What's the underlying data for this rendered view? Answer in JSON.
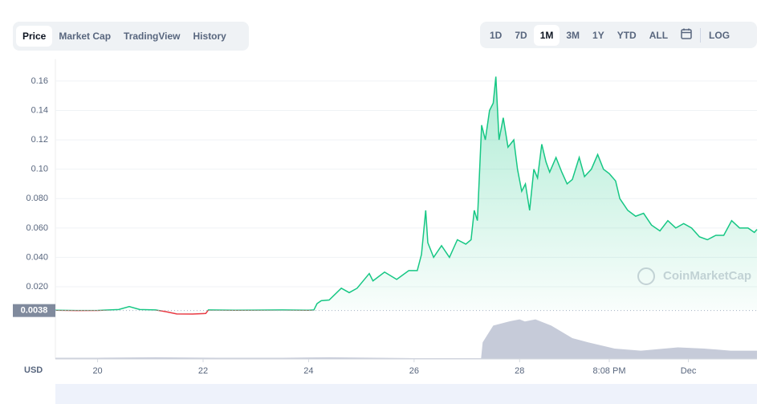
{
  "tabs": {
    "items": [
      "Price",
      "Market Cap",
      "TradingView",
      "History"
    ],
    "active": 0
  },
  "ranges": {
    "items": [
      "1D",
      "7D",
      "1M",
      "3M",
      "1Y",
      "YTD",
      "ALL"
    ],
    "active": 2,
    "log": "LOG"
  },
  "chart_data": {
    "type": "line",
    "currency": "USD",
    "watermark": "CoinMarketCap",
    "baseline": 0.0038,
    "xlim": [
      19.2,
      32.5
    ],
    "xticks": [
      20,
      22,
      24,
      26,
      28,
      {
        "value": 29.7,
        "label": "8:08 PM"
      },
      {
        "value": 31.2,
        "label": "Dec"
      }
    ],
    "ylim": [
      0,
      0.175
    ],
    "yticks": [
      {
        "value": 0.02,
        "label": "0.020"
      },
      {
        "value": 0.04,
        "label": "0.040"
      },
      {
        "value": 0.06,
        "label": "0.060"
      },
      {
        "value": 0.08,
        "label": "0.080"
      },
      {
        "value": 0.1,
        "label": "0.10"
      },
      0.12,
      0.14,
      0.16
    ],
    "grid": true,
    "series": [
      {
        "name": "Price",
        "color": "#16c784",
        "down_color": "#ea3943",
        "x": [
          19.2,
          19.6,
          20.0,
          20.4,
          20.6,
          20.8,
          21.1,
          21.3,
          21.5,
          21.8,
          22.05,
          22.1,
          22.6,
          23.0,
          23.5,
          24.0,
          24.1,
          24.16,
          24.24,
          24.39,
          24.62,
          24.77,
          24.92,
          25.15,
          25.22,
          25.44,
          25.67,
          25.9,
          26.06,
          26.14,
          26.22,
          26.26,
          26.37,
          26.52,
          26.67,
          26.82,
          26.98,
          27.08,
          27.14,
          27.2,
          27.28,
          27.35,
          27.43,
          27.5,
          27.55,
          27.61,
          27.69,
          27.78,
          27.89,
          27.96,
          28.04,
          28.11,
          28.19,
          28.27,
          28.34,
          28.42,
          28.5,
          28.57,
          28.69,
          28.8,
          28.9,
          29.0,
          29.13,
          29.23,
          29.36,
          29.48,
          29.59,
          29.7,
          29.82,
          29.9,
          30.05,
          30.2,
          30.35,
          30.5,
          30.66,
          30.81,
          30.96,
          31.11,
          31.26,
          31.41,
          31.56,
          31.72,
          31.87,
          32.02,
          32.17,
          32.33,
          32.45,
          32.5
        ],
        "values": [
          0.004,
          0.0038,
          0.0039,
          0.0045,
          0.0065,
          0.0045,
          0.0042,
          0.003,
          0.0015,
          0.0014,
          0.0018,
          0.0042,
          0.004,
          0.0041,
          0.0042,
          0.004,
          0.0042,
          0.0085,
          0.0105,
          0.011,
          0.019,
          0.016,
          0.019,
          0.029,
          0.024,
          0.03,
          0.025,
          0.031,
          0.031,
          0.042,
          0.072,
          0.05,
          0.04,
          0.048,
          0.04,
          0.052,
          0.049,
          0.052,
          0.072,
          0.065,
          0.13,
          0.12,
          0.14,
          0.145,
          0.163,
          0.12,
          0.135,
          0.115,
          0.12,
          0.1,
          0.085,
          0.09,
          0.072,
          0.1,
          0.094,
          0.117,
          0.105,
          0.098,
          0.108,
          0.098,
          0.09,
          0.093,
          0.108,
          0.095,
          0.1,
          0.11,
          0.1,
          0.097,
          0.092,
          0.08,
          0.072,
          0.068,
          0.07,
          0.062,
          0.058,
          0.065,
          0.06,
          0.063,
          0.06,
          0.054,
          0.052,
          0.055,
          0.055,
          0.065,
          0.06,
          0.06,
          0.057,
          0.059
        ]
      },
      {
        "name": "Volume",
        "color": "#c6cbd9",
        "x": [
          19.2,
          20.0,
          21.1,
          22.3,
          23.5,
          24.4,
          26.0,
          27.27,
          27.3,
          27.5,
          27.8,
          28.0,
          28.1,
          28.3,
          28.6,
          29.0,
          29.3,
          29.8,
          30.3,
          31.0,
          31.5,
          32.0,
          32.5
        ],
        "values": [
          0.03,
          0.03,
          0.04,
          0.03,
          0.03,
          0.04,
          0.02,
          0.02,
          0.4,
          0.8,
          0.9,
          0.95,
          0.9,
          0.95,
          0.8,
          0.5,
          0.4,
          0.25,
          0.2,
          0.28,
          0.25,
          0.2,
          0.2
        ],
        "ylim": [
          0,
          1
        ]
      }
    ]
  }
}
